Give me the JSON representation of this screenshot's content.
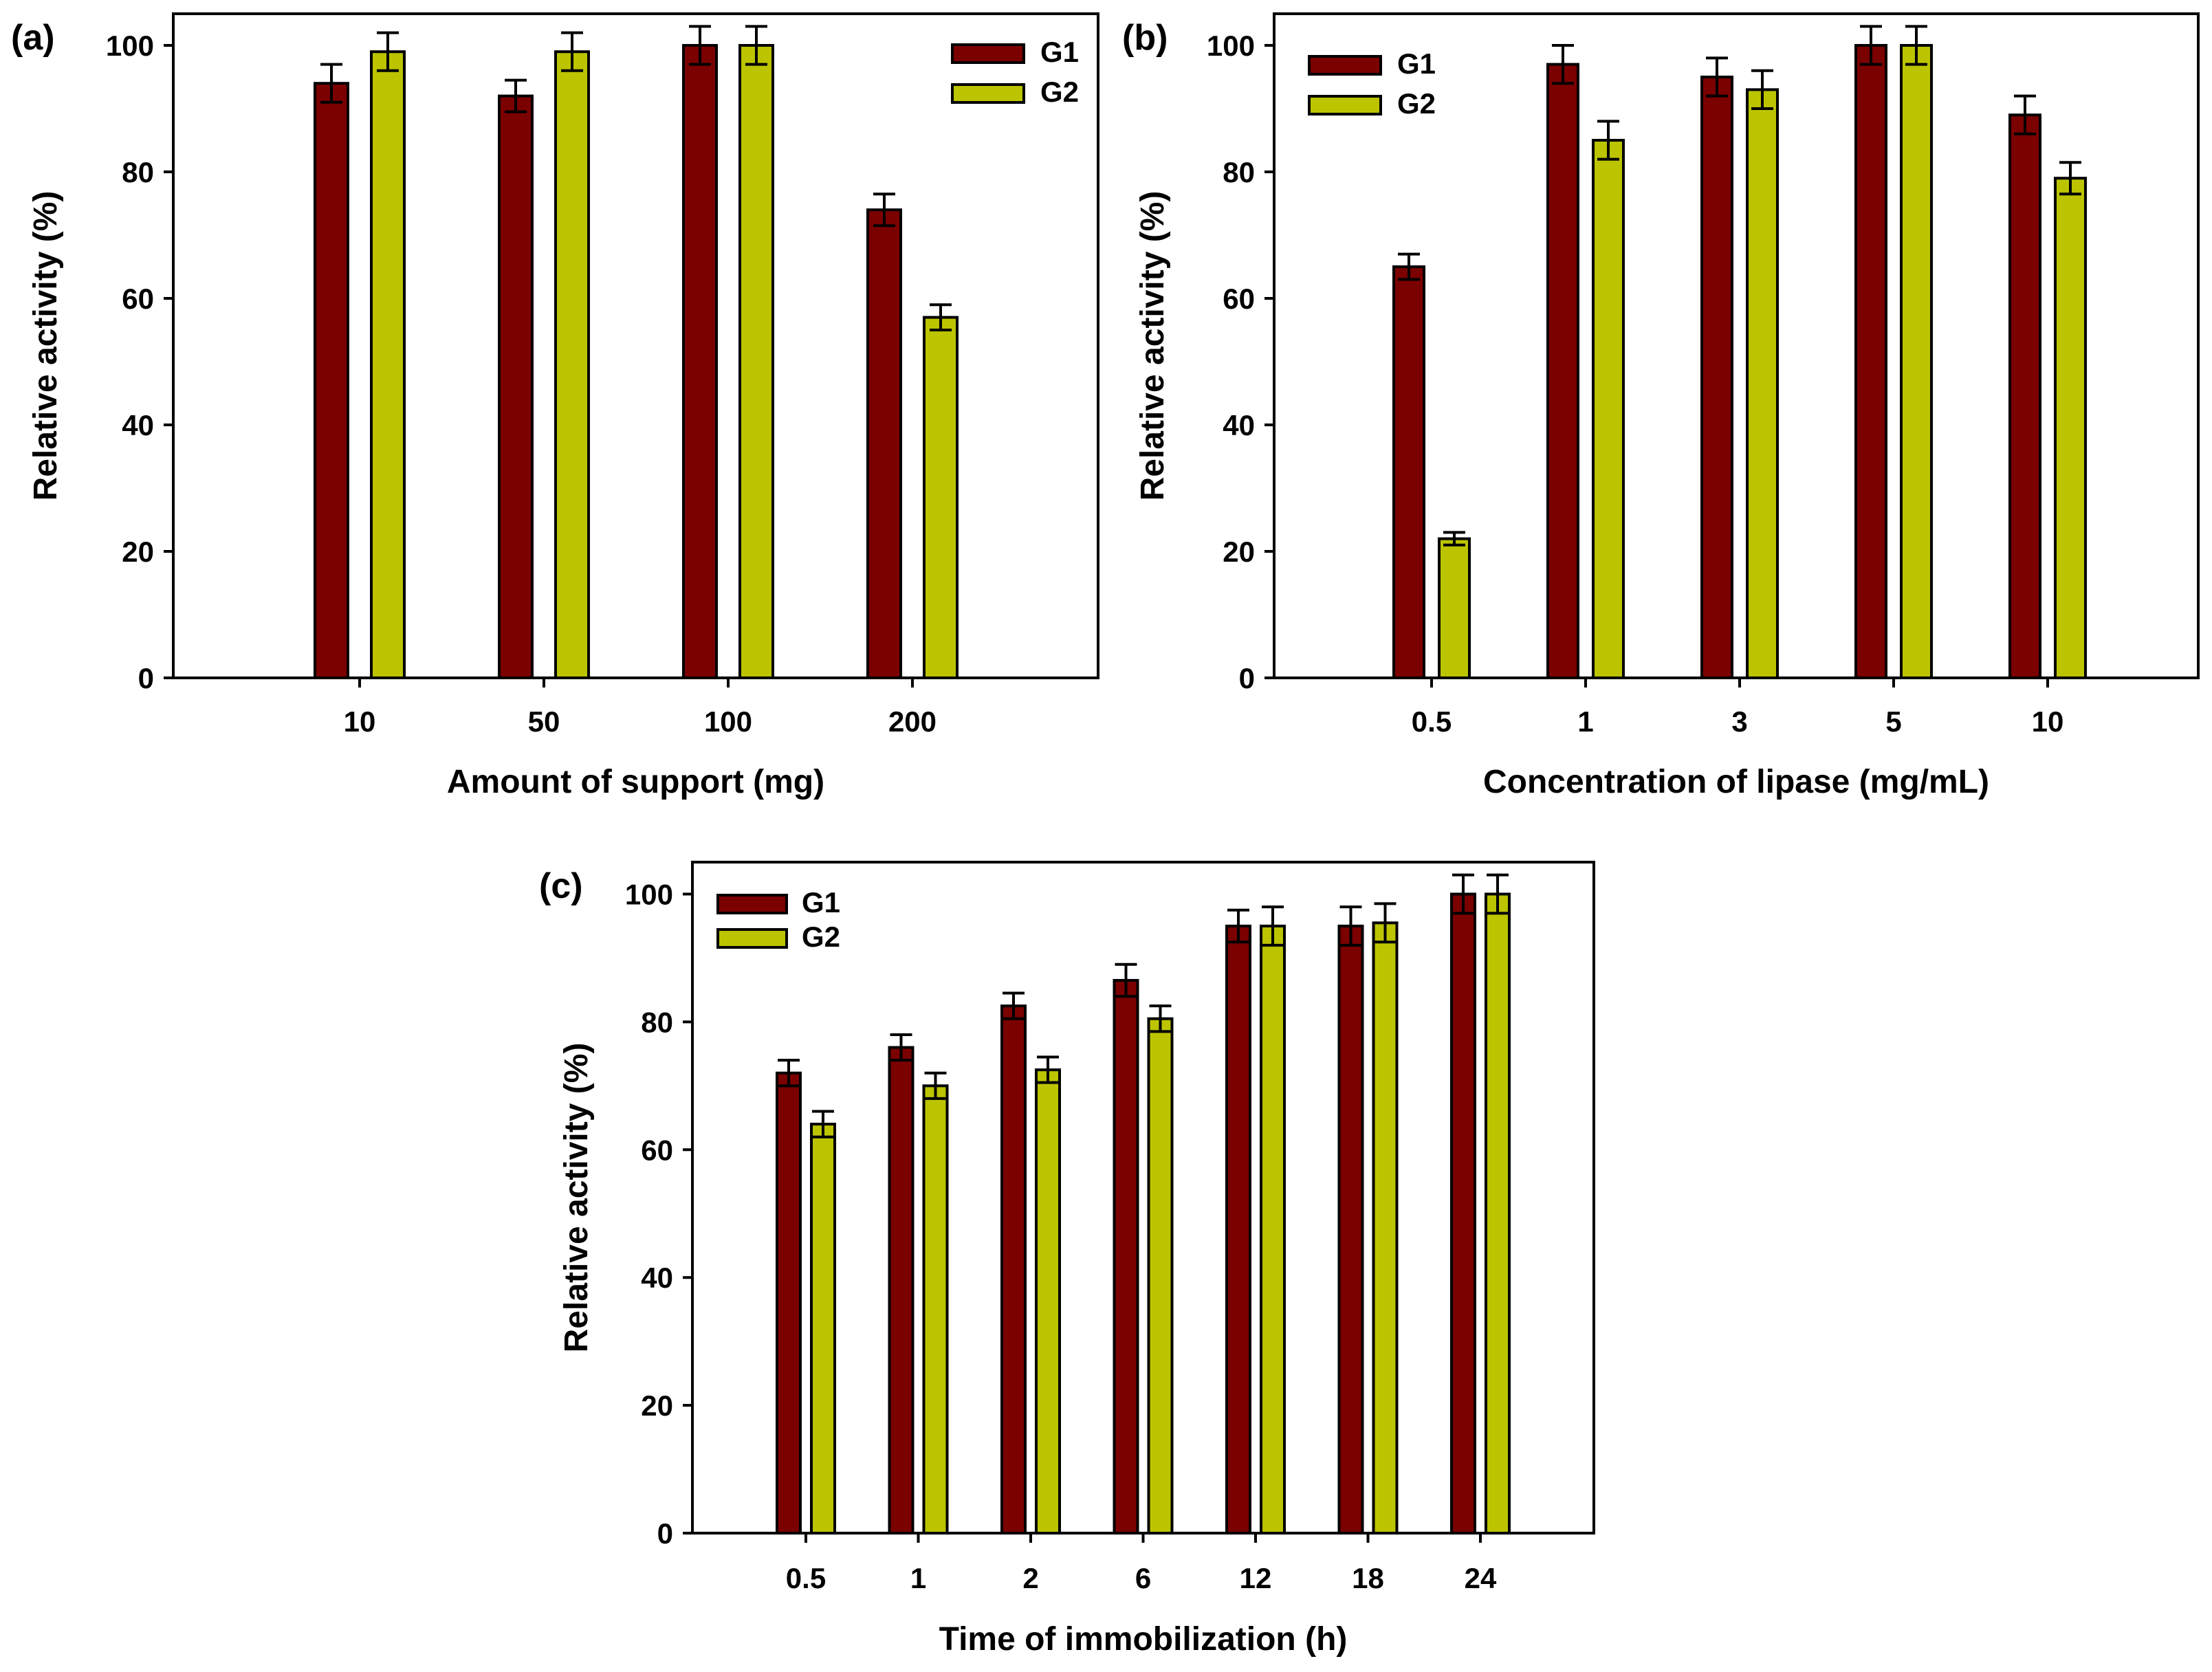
{
  "chart_data": [
    {
      "panel_label": "(a)",
      "type": "bar",
      "xlabel": "Amount of support (mg)",
      "ylabel": "Relative activity (%)",
      "categories": [
        "10",
        "50",
        "100",
        "200"
      ],
      "ylim": [
        0,
        105
      ],
      "yticks": [
        0,
        20,
        40,
        60,
        80,
        100
      ],
      "legend_position": "top-right",
      "series": [
        {
          "name": "G1",
          "color": "#7b0000",
          "values": [
            94,
            92,
            100,
            74
          ],
          "errors": [
            3,
            2.5,
            3,
            2.5
          ]
        },
        {
          "name": "G2",
          "color": "#bcc400",
          "values": [
            99,
            99,
            100,
            57
          ],
          "errors": [
            3,
            3,
            3,
            2
          ]
        }
      ]
    },
    {
      "panel_label": "(b)",
      "type": "bar",
      "xlabel": "Concentration of lipase (mg/mL)",
      "ylabel": "Relative activity (%)",
      "categories": [
        "0.5",
        "1",
        "3",
        "5",
        "10"
      ],
      "ylim": [
        0,
        105
      ],
      "yticks": [
        0,
        20,
        40,
        60,
        80,
        100
      ],
      "legend_position": "top-left",
      "series": [
        {
          "name": "G1",
          "color": "#7b0000",
          "values": [
            65,
            97,
            95,
            100,
            89
          ],
          "errors": [
            2,
            3,
            3,
            3,
            3
          ]
        },
        {
          "name": "G2",
          "color": "#bcc400",
          "values": [
            22,
            85,
            93,
            100,
            79
          ],
          "errors": [
            1,
            3,
            3,
            3,
            2.5
          ]
        }
      ]
    },
    {
      "panel_label": "(c)",
      "type": "bar",
      "xlabel": "Time of immobilization (h)",
      "ylabel": "Relative activity (%)",
      "categories": [
        "0.5",
        "1",
        "2",
        "6",
        "12",
        "18",
        "24"
      ],
      "ylim": [
        0,
        105
      ],
      "yticks": [
        0,
        20,
        40,
        60,
        80,
        100
      ],
      "legend_position": "top-left",
      "series": [
        {
          "name": "G1",
          "color": "#7b0000",
          "values": [
            72,
            76,
            82.5,
            86.5,
            95,
            95,
            100
          ],
          "errors": [
            2,
            2,
            2,
            2.5,
            2.5,
            3,
            3
          ]
        },
        {
          "name": "G2",
          "color": "#bcc400",
          "values": [
            64,
            70,
            72.5,
            80.5,
            95,
            95.5,
            100
          ],
          "errors": [
            2,
            2,
            2,
            2,
            3,
            3,
            3
          ]
        }
      ]
    }
  ]
}
